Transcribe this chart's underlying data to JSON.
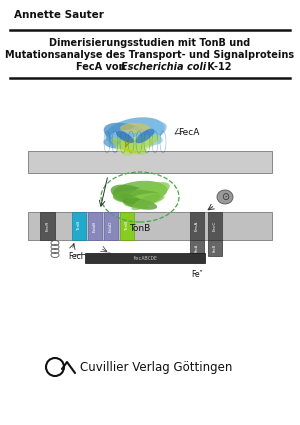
{
  "author": "Annette Sauter",
  "title_line1": "Dimerisierungsstudien mit TonB und",
  "title_line2": "Mutationsanalyse des Transport- und Signalproteins",
  "title_line3_a": "FecA von ",
  "title_line3_b": "Escherichia coli",
  "title_line3_c": " K-12",
  "publisher": "Cuvillier Verlag Göttingen",
  "bg_color": "#ffffff",
  "text_color": "#111111",
  "line_color": "#111111"
}
